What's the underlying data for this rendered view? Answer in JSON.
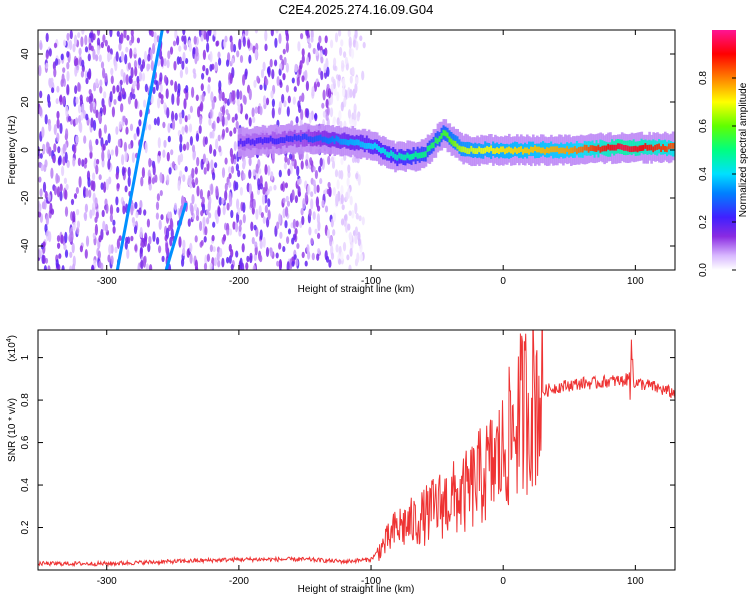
{
  "title": "C2E4.2025.274.16.09.G04",
  "chart_data": [
    {
      "type": "heatmap",
      "xlabel": "Height of straight line (km)",
      "ylabel": "Frequency (Hz)",
      "xlim": [
        -352,
        130
      ],
      "ylim": [
        -50,
        50
      ],
      "xticks": [
        -300,
        -200,
        -100,
        0,
        100
      ],
      "yticks": [
        -40,
        -20,
        0,
        20,
        40
      ],
      "colorbar": {
        "label": "Normalized spectral amplitude",
        "range": [
          0,
          1
        ],
        "ticks": [
          0.0,
          0.2,
          0.4,
          0.6,
          0.8
        ],
        "colormap": [
          "#ffffff",
          "#d8b8ff",
          "#8a2be2",
          "#4020ff",
          "#0080ff",
          "#00e0ff",
          "#00ff80",
          "#60ff00",
          "#ffff00",
          "#ff8000",
          "#ff0000",
          "#ff1493"
        ]
      },
      "features": {
        "noise_region_x": [
          -352,
          -105
        ],
        "carrier_trace": [
          {
            "x": -200,
            "y": 3,
            "amp": 0.25
          },
          {
            "x": -150,
            "y": 5,
            "amp": 0.3
          },
          {
            "x": -120,
            "y": 4,
            "amp": 0.4
          },
          {
            "x": -100,
            "y": 2,
            "amp": 0.45
          },
          {
            "x": -80,
            "y": -3,
            "amp": 0.5
          },
          {
            "x": -60,
            "y": -2,
            "amp": 0.55
          },
          {
            "x": -45,
            "y": 7,
            "amp": 0.6
          },
          {
            "x": -30,
            "y": 0,
            "amp": 0.7
          },
          {
            "x": 0,
            "y": 0,
            "amp": 0.75
          },
          {
            "x": 50,
            "y": 0,
            "amp": 0.8
          },
          {
            "x": 90,
            "y": 1,
            "amp": 0.95
          },
          {
            "x": 130,
            "y": 1,
            "amp": 0.85
          }
        ],
        "diagonal_streaks": [
          {
            "x1": -292,
            "y1": -50,
            "x2": -258,
            "y2": 50
          },
          {
            "x1": -255,
            "y1": -50,
            "x2": -240,
            "y2": -22
          }
        ]
      }
    },
    {
      "type": "line",
      "xlabel": "Height of straight line (km)",
      "ylabel": "SNR (10 * v/v)",
      "multiplier": "(x10⁴)",
      "multiplier_base": "(x10",
      "multiplier_exp": "4",
      "multiplier_close": ")",
      "xlim": [
        -352,
        130
      ],
      "ylim": [
        0,
        1.13
      ],
      "xticks": [
        -300,
        -200,
        -100,
        0,
        100
      ],
      "yticks": [
        0.2,
        0.4,
        0.6,
        0.8,
        1
      ],
      "series": [
        {
          "color": "#ee3333",
          "x": [
            -352,
            -300,
            -250,
            -200,
            -150,
            -120,
            -100,
            -90,
            -80,
            -70,
            -60,
            -50,
            -40,
            -30,
            -20,
            -10,
            0,
            10,
            20,
            30,
            40,
            50,
            60,
            70,
            80,
            90,
            95,
            100,
            110,
            120,
            130
          ],
          "y": [
            0.03,
            0.03,
            0.04,
            0.05,
            0.05,
            0.04,
            0.05,
            0.12,
            0.2,
            0.22,
            0.25,
            0.3,
            0.33,
            0.35,
            0.42,
            0.48,
            0.55,
            0.7,
            0.8,
            0.84,
            0.86,
            0.87,
            0.88,
            0.88,
            0.89,
            0.89,
            0.9,
            0.88,
            0.87,
            0.85,
            0.83
          ]
        }
      ]
    }
  ]
}
